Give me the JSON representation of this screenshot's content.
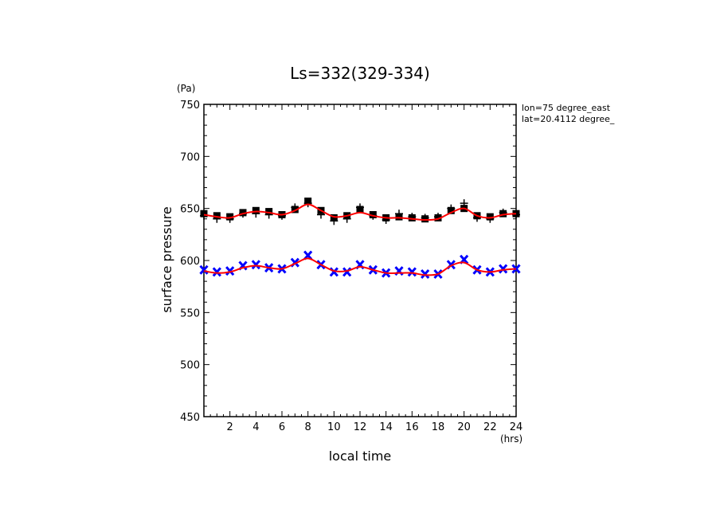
{
  "chart_data": {
    "type": "line",
    "title": "Ls=332(329-334)",
    "xlabel": "local time",
    "ylabel": "surface pressure",
    "x_unit": "(hrs)",
    "y_unit": "(Pa)",
    "xlim": [
      0,
      24
    ],
    "ylim": [
      450,
      750
    ],
    "x_ticks": [
      2,
      4,
      6,
      8,
      10,
      12,
      14,
      16,
      18,
      20,
      22,
      24
    ],
    "y_ticks": [
      450,
      500,
      550,
      600,
      650,
      700,
      750
    ],
    "grid": false,
    "legend": "none",
    "annotations": [
      "lon=75 degree_east",
      "lat=20.4112 degree_"
    ],
    "series": [
      {
        "marker": "filled-square",
        "color": "#000000",
        "x": [
          0,
          1,
          2,
          3,
          4,
          5,
          6,
          7,
          8,
          9,
          10,
          11,
          12,
          13,
          14,
          15,
          16,
          17,
          18,
          19,
          20,
          21,
          22,
          23,
          24
        ],
        "values": [
          645,
          643,
          642,
          646,
          648,
          647,
          644,
          649,
          657,
          648,
          641,
          643,
          649,
          644,
          641,
          642,
          641,
          640,
          641,
          648,
          650,
          643,
          642,
          645,
          645
        ]
      },
      {
        "marker": "plus",
        "color": "#000000",
        "x": [
          0,
          1,
          2,
          3,
          4,
          5,
          6,
          7,
          8,
          9,
          10,
          11,
          12,
          13,
          14,
          15,
          16,
          17,
          18,
          19,
          20,
          21,
          22,
          23,
          24
        ],
        "values": [
          643,
          640,
          640,
          645,
          645,
          644,
          643,
          651,
          655,
          644,
          638,
          640,
          651,
          643,
          639,
          645,
          642,
          641,
          642,
          650,
          655,
          641,
          640,
          646,
          644
        ]
      },
      {
        "marker": "cross",
        "color": "#0000ff",
        "x": [
          0,
          1,
          2,
          3,
          4,
          5,
          6,
          7,
          8,
          9,
          10,
          11,
          12,
          13,
          14,
          15,
          16,
          17,
          18,
          19,
          20,
          21,
          22,
          23,
          24
        ],
        "values": [
          591,
          589,
          590,
          595,
          596,
          593,
          592,
          598,
          605,
          596,
          589,
          589,
          596,
          591,
          588,
          590,
          589,
          587,
          587,
          596,
          601,
          591,
          589,
          592,
          592
        ]
      },
      {
        "marker": "line",
        "color": "#ff0000",
        "x": [
          0,
          1,
          2,
          3,
          4,
          5,
          6,
          7,
          8,
          9,
          10,
          11,
          12,
          13,
          14,
          15,
          16,
          17,
          18,
          19,
          20,
          21,
          22,
          23,
          24
        ],
        "values": [
          644,
          642,
          641,
          645,
          647,
          646,
          644,
          648,
          654,
          648,
          642,
          643,
          646,
          643,
          641,
          641,
          640,
          639,
          640,
          646,
          650,
          643,
          641,
          644,
          645
        ]
      },
      {
        "marker": "line",
        "color": "#ff0000",
        "x": [
          0,
          1,
          2,
          3,
          4,
          5,
          6,
          7,
          8,
          9,
          10,
          11,
          12,
          13,
          14,
          15,
          16,
          17,
          18,
          19,
          20,
          21,
          22,
          23,
          24
        ],
        "values": [
          590,
          588,
          589,
          593,
          595,
          593,
          592,
          597,
          602,
          596,
          590,
          590,
          594,
          591,
          588,
          588,
          588,
          586,
          587,
          595,
          598,
          591,
          589,
          591,
          592
        ]
      }
    ]
  }
}
